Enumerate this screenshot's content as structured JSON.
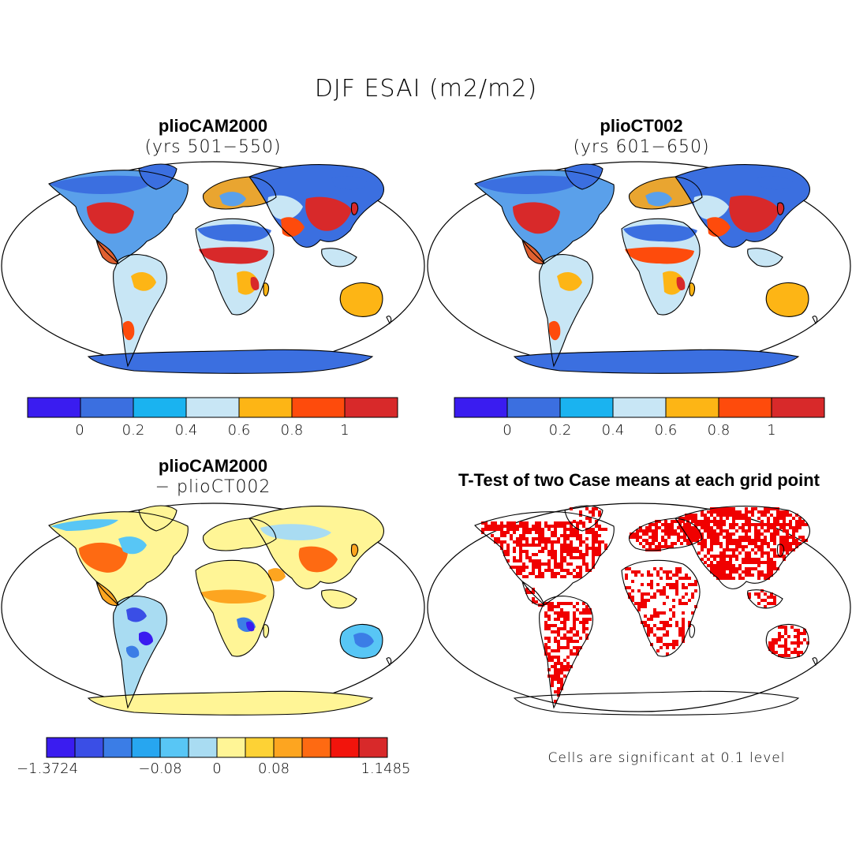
{
  "figure": {
    "title": "DJF ESAI (m2/m2)"
  },
  "colors": {
    "ocean": "#ffffff",
    "border": "#000000"
  },
  "panels": [
    {
      "name": "pliocam2000",
      "title": "plioCAM2000",
      "subtitle": "(yrs 501−550)",
      "colorbar": {
        "colors": [
          "#3a1cf0",
          "#3b6fe0",
          "#1ab3f0",
          "#c8e6f5",
          "#fdb515",
          "#fe4b0c",
          "#d8292a"
        ],
        "tick_labels": [
          "0",
          "0.2",
          "0.4",
          "0.6",
          "0.8",
          "1"
        ]
      }
    },
    {
      "name": "plioct002",
      "title": "plioCT002",
      "subtitle": "(yrs 601−650)",
      "colorbar": {
        "colors": [
          "#3a1cf0",
          "#3b6fe0",
          "#1ab3f0",
          "#c8e6f5",
          "#fdb515",
          "#fe4b0c",
          "#d8292a"
        ],
        "tick_labels": [
          "0",
          "0.2",
          "0.4",
          "0.6",
          "0.8",
          "1"
        ]
      }
    },
    {
      "name": "difference",
      "title": "plioCAM2000",
      "subtitle": "− plioCT002",
      "colorbar": {
        "colors": [
          "#3a1cf0",
          "#3a4ee6",
          "#3b7de6",
          "#27a6f0",
          "#58c6f5",
          "#a9dcf2",
          "#fff596",
          "#fdd235",
          "#fda520",
          "#fe6a12",
          "#f2140c",
          "#d8292a"
        ],
        "tick_labels": [
          "−1.3724",
          "−0.08",
          "0",
          "0.08",
          "1.1485"
        ]
      }
    },
    {
      "name": "ttest",
      "title": "T-Test of two Case means at each grid point",
      "note": "Cells are significant at 0.1 level",
      "significance_color": "#f00000"
    }
  ]
}
